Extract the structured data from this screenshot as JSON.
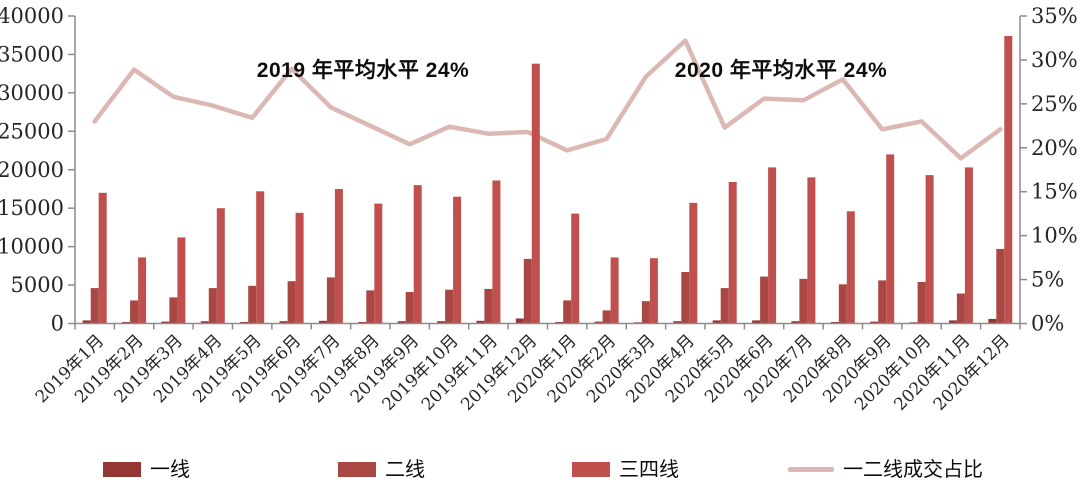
{
  "chart_data": {
    "type": "bar+line",
    "title": "",
    "categories": [
      "2019年1月",
      "2019年2月",
      "2019年3月",
      "2019年4月",
      "2019年5月",
      "2019年6月",
      "2019年7月",
      "2019年8月",
      "2019年9月",
      "2019年10月",
      "2019年11月",
      "2019年12月",
      "2020年1月",
      "2020年2月",
      "2020年3月",
      "2020年4月",
      "2020年5月",
      "2020年6月",
      "2020年7月",
      "2020年8月",
      "2020年9月",
      "2020年10月",
      "2020年11月",
      "2020年12月"
    ],
    "series": [
      {
        "name": "一线",
        "type": "bar",
        "color": "#943634",
        "values": [
          400,
          200,
          250,
          300,
          200,
          300,
          350,
          200,
          300,
          300,
          350,
          650,
          200,
          250,
          150,
          300,
          400,
          400,
          300,
          200,
          250,
          150,
          400,
          600
        ]
      },
      {
        "name": "二线",
        "type": "bar",
        "color": "#A84743",
        "values": [
          4600,
          3000,
          3400,
          4600,
          4900,
          5500,
          6000,
          4300,
          4100,
          4400,
          4500,
          8400,
          3000,
          1700,
          2900,
          6700,
          4600,
          6100,
          5800,
          5100,
          5600,
          5400,
          3900,
          9700
        ]
      },
      {
        "name": "三四线",
        "type": "bar",
        "color": "#C0504D",
        "values": [
          17000,
          8600,
          11200,
          15000,
          17200,
          14400,
          17500,
          15600,
          18000,
          16500,
          18600,
          33800,
          14300,
          8600,
          8500,
          15700,
          18400,
          20300,
          19000,
          14600,
          22000,
          19300,
          20300,
          37400
        ]
      },
      {
        "name": "一二线成交占比",
        "type": "line",
        "axis": "right",
        "color": "#DCB8B4",
        "values": [
          23.0,
          28.9,
          25.8,
          24.8,
          23.4,
          29.0,
          24.6,
          22.5,
          20.4,
          22.4,
          21.6,
          21.8,
          19.7,
          21.0,
          28.1,
          32.2,
          22.3,
          25.6,
          25.4,
          27.8,
          22.1,
          23.0,
          18.8,
          22.1
        ]
      }
    ],
    "left_axis": {
      "min": 0,
      "max": 40000,
      "step": 5000,
      "tick_labels": [
        "0",
        "5000",
        "10000",
        "15000",
        "20000",
        "25000",
        "30000",
        "35000",
        "40000"
      ]
    },
    "right_axis": {
      "min": 0,
      "max": 35,
      "step": 5,
      "tick_labels": [
        "0%",
        "5%",
        "10%",
        "15%",
        "20%",
        "25%",
        "30%",
        "35%"
      ]
    },
    "grid": false,
    "legend_position": "bottom",
    "annotations": [
      {
        "text": "2019 年平均水平 24%"
      },
      {
        "text": "2020 年平均水平 24%"
      }
    ]
  }
}
